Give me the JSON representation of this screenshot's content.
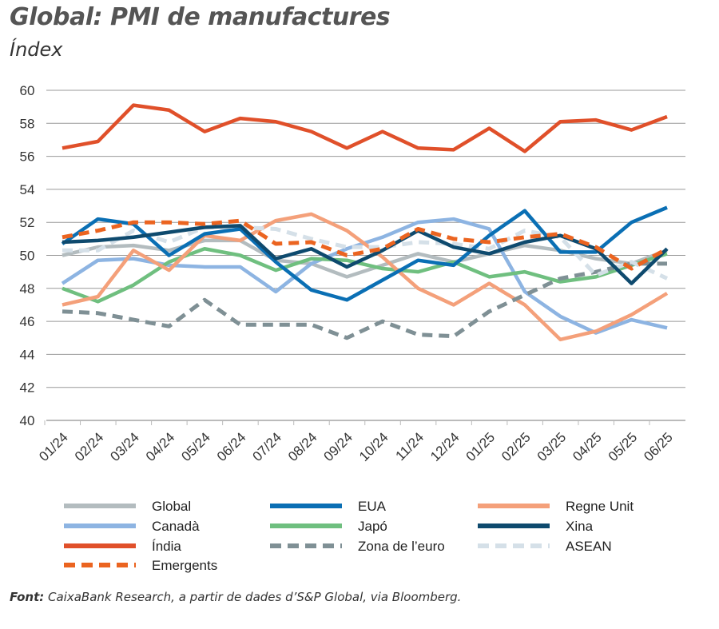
{
  "chart_data": {
    "type": "line",
    "title": "Global: PMI de manufactures",
    "ylabel": "Índex",
    "ylim": [
      40,
      60
    ],
    "yticks": [
      40,
      42,
      44,
      46,
      48,
      50,
      52,
      54,
      56,
      58,
      60
    ],
    "grid": true,
    "legend_position": "bottom",
    "categories": [
      "01/24",
      "02/24",
      "03/24",
      "04/24",
      "05/24",
      "06/24",
      "07/24",
      "08/24",
      "09/24",
      "10/24",
      "11/24",
      "12/24",
      "01/25",
      "02/25",
      "03/25",
      "04/25",
      "05/25",
      "06/25"
    ],
    "series": [
      {
        "name": "Global",
        "color": "#b3bcbf",
        "dash": false,
        "values": [
          50.0,
          50.5,
          50.6,
          50.3,
          50.9,
          50.9,
          49.7,
          49.5,
          48.7,
          49.4,
          50.1,
          49.6,
          50.1,
          50.6,
          50.3,
          49.8,
          49.5,
          50.3
        ]
      },
      {
        "name": "EUA",
        "color": "#0a6fb4",
        "dash": false,
        "values": [
          50.7,
          52.2,
          51.9,
          50.0,
          51.3,
          51.6,
          49.6,
          47.9,
          47.3,
          48.5,
          49.7,
          49.4,
          51.2,
          52.7,
          50.2,
          50.2,
          52.0,
          52.9
        ]
      },
      {
        "name": "Regne Unit",
        "color": "#f4a07a",
        "dash": false,
        "values": [
          47.0,
          47.5,
          50.3,
          49.1,
          51.2,
          50.9,
          52.1,
          52.5,
          51.5,
          49.9,
          48.0,
          47.0,
          48.3,
          47.0,
          44.9,
          45.4,
          46.4,
          47.7
        ]
      },
      {
        "name": "Canadà",
        "color": "#8db4e2",
        "dash": false,
        "values": [
          48.3,
          49.7,
          49.8,
          49.4,
          49.3,
          49.3,
          47.8,
          49.5,
          50.4,
          51.1,
          52.0,
          52.2,
          51.6,
          47.8,
          46.3,
          45.3,
          46.1,
          45.6
        ]
      },
      {
        "name": "Japó",
        "color": "#6fbf7f",
        "dash": false,
        "values": [
          48.0,
          47.2,
          48.2,
          49.6,
          50.4,
          50.0,
          49.1,
          49.8,
          49.7,
          49.2,
          49.0,
          49.6,
          48.7,
          49.0,
          48.4,
          48.7,
          49.4,
          50.1
        ]
      },
      {
        "name": "Xina",
        "color": "#0e4a6e",
        "dash": false,
        "values": [
          50.8,
          50.9,
          51.1,
          51.4,
          51.7,
          51.8,
          49.8,
          50.4,
          49.3,
          50.3,
          51.5,
          50.5,
          50.1,
          50.8,
          51.2,
          50.4,
          48.3,
          50.4
        ]
      },
      {
        "name": "Índia",
        "color": "#e0502a",
        "dash": false,
        "values": [
          56.5,
          56.9,
          59.1,
          58.8,
          57.5,
          58.3,
          58.1,
          57.5,
          56.5,
          57.5,
          56.5,
          56.4,
          57.7,
          56.3,
          58.1,
          58.2,
          57.6,
          58.4
        ]
      },
      {
        "name": "Zona de l’euro",
        "color": "#7f9095",
        "dash": true,
        "values": [
          46.6,
          46.5,
          46.1,
          45.7,
          47.3,
          45.8,
          45.8,
          45.8,
          45.0,
          46.0,
          45.2,
          45.1,
          46.6,
          47.6,
          48.6,
          49.0,
          49.5,
          49.5
        ]
      },
      {
        "name": "ASEAN",
        "color": "#d5e0e8",
        "dash": true,
        "values": [
          50.3,
          50.3,
          51.5,
          50.8,
          51.7,
          51.7,
          51.6,
          51.0,
          50.5,
          50.5,
          50.8,
          50.7,
          50.4,
          51.5,
          51.1,
          48.8,
          49.6,
          48.6
        ]
      },
      {
        "name": "Emergents",
        "color": "#eb6420",
        "dash": true,
        "values": [
          51.1,
          51.5,
          52.0,
          52.0,
          51.9,
          52.1,
          50.7,
          50.8,
          50.0,
          50.4,
          51.6,
          51.0,
          50.8,
          51.1,
          51.3,
          50.5,
          49.2,
          50.4
        ]
      }
    ]
  },
  "source": {
    "label": "Font:",
    "text": " CaixaBank Research, a partir de dades d’S&P Global, via Bloomberg."
  }
}
